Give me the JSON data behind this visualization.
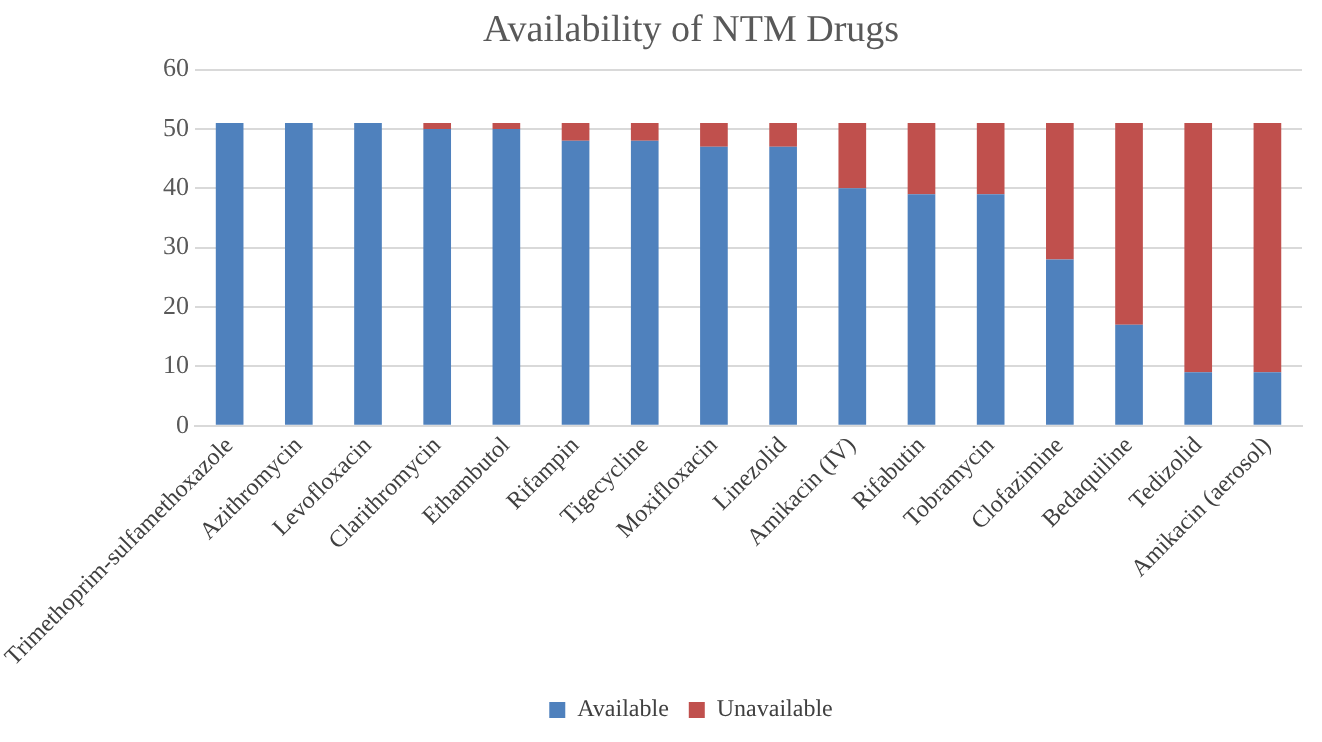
{
  "chart_data": {
    "type": "bar",
    "title": "Availability of NTM Drugs",
    "stacked": true,
    "categories": [
      "Trimethoprim-sulfamethoxazole",
      "Azithromycin",
      "Levofloxacin",
      "Clarithromycin",
      "Ethambutol",
      "Rifampin",
      "Tigecycline",
      "Moxifloxacin",
      "Linezolid",
      "Amikacin (IV)",
      "Rifabutin",
      "Tobramycin",
      "Clofazimine",
      "Bedaquiline",
      "Tedizolid",
      "Amikacin (aerosol)"
    ],
    "series": [
      {
        "name": "Available",
        "color": "#4f81bd",
        "values": [
          51,
          51,
          51,
          50,
          50,
          48,
          48,
          47,
          47,
          40,
          39,
          39,
          28,
          17,
          9,
          9
        ]
      },
      {
        "name": "Unavailable",
        "color": "#c0504d",
        "values": [
          0,
          0,
          0,
          1,
          1,
          3,
          3,
          4,
          4,
          11,
          12,
          12,
          23,
          34,
          42,
          42
        ]
      }
    ],
    "ylim": [
      0,
      60
    ],
    "yticks": [
      0,
      10,
      20,
      30,
      40,
      50,
      60
    ],
    "grid": "y",
    "legend": "bottom"
  }
}
